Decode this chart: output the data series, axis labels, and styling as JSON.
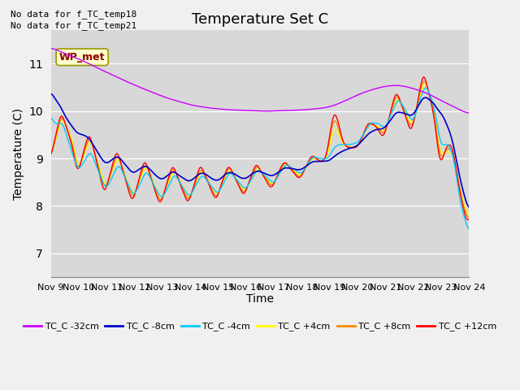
{
  "title": "Temperature Set C",
  "xlabel": "Time",
  "ylabel": "Temperature (C)",
  "ylim": [
    6.5,
    11.7
  ],
  "note1": "No data for f_TC_temp18",
  "note2": "No data for f_TC_temp21",
  "wp_met_label": "WP_met",
  "xtick_labels": [
    "Nov 9",
    "Nov 10",
    "Nov 11",
    "Nov 12",
    "Nov 13",
    "Nov 14",
    "Nov 15",
    "Nov 16",
    "Nov 17",
    "Nov 18",
    "Nov 19",
    "Nov 20",
    "Nov 21",
    "Nov 22",
    "Nov 23",
    "Nov 24"
  ],
  "legend_labels": [
    "TC_C -32cm",
    "TC_C -8cm",
    "TC_C -4cm",
    "TC_C +4cm",
    "TC_C +8cm",
    "TC_C +12cm"
  ],
  "legend_colors": [
    "#cc00ff",
    "#0000cc",
    "#00ccff",
    "#ffff00",
    "#ff8800",
    "#ff0000"
  ],
  "bg_color": "#d8d8d8",
  "grid_color": "#ffffff",
  "fig_bg": "#f0f0f0",
  "title_fontsize": 13,
  "label_fontsize": 10,
  "tick_fontsize": 8
}
